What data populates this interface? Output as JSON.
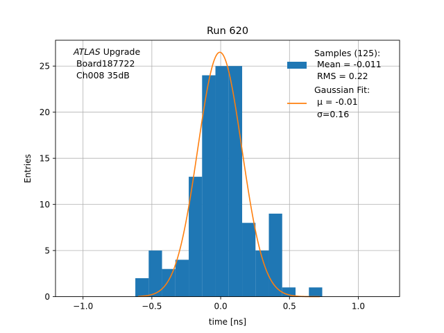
{
  "chart_data": {
    "type": "bar",
    "title": "Run 620",
    "xlabel": "time [ns]",
    "ylabel": "Entries",
    "xlim": [
      -1.2,
      1.3
    ],
    "ylim": [
      0,
      27.8
    ],
    "grid": true,
    "xticks": [
      -1.0,
      -0.5,
      0.0,
      0.5,
      1.0
    ],
    "xtick_labels": [
      "−1.0",
      "−0.5",
      "0.0",
      "0.5",
      "1.0"
    ],
    "yticks": [
      0,
      5,
      10,
      15,
      20,
      25
    ],
    "ytick_labels": [
      "0",
      "5",
      "10",
      "15",
      "20",
      "25"
    ],
    "histogram": {
      "name": "Samples (125)",
      "color": "#1f77b4",
      "bin_edges": [
        -0.62,
        -0.523,
        -0.426,
        -0.329,
        -0.232,
        -0.135,
        -0.038,
        0.059,
        0.156,
        0.253,
        0.35,
        0.447,
        0.544,
        0.641,
        0.738
      ],
      "counts": [
        2,
        5,
        3,
        4,
        13,
        24,
        25,
        25,
        8,
        5,
        9,
        1,
        0,
        1
      ]
    },
    "fit": {
      "name": "Gaussian Fit",
      "color": "#ff7f0e",
      "mu": -0.006,
      "sigma": 0.16,
      "amplitude": 26.5,
      "x_range": [
        -0.6,
        0.72
      ]
    },
    "annotation": {
      "italic": "ATLAS",
      "line1_rest": " Upgrade",
      "line2": " Board187722",
      "line3": " Ch008 35dB"
    },
    "legend": {
      "position": "top-right",
      "entries": [
        {
          "kind": "patch",
          "line1": "Samples (125):",
          "line2": " Mean = -0.011",
          "line3": " RMS = 0.22"
        },
        {
          "kind": "line",
          "line1": "Gaussian Fit:",
          "line2": " μ = -0.01",
          "line3": " σ=0.16"
        }
      ]
    }
  }
}
